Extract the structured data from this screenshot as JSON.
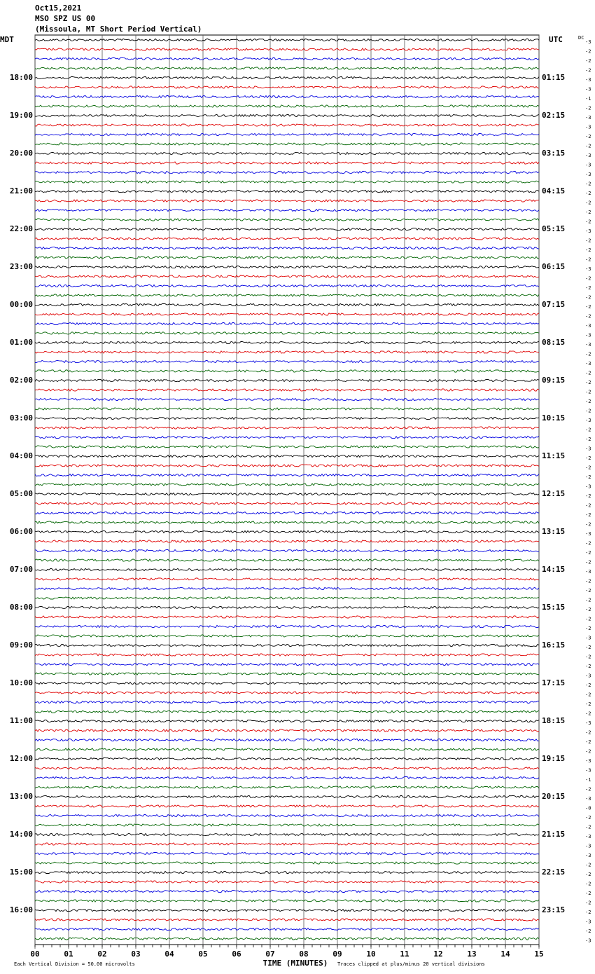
{
  "chart_data": {
    "type": "helicorder",
    "title_lines": [
      "Oct15,2021",
      "MSO SPZ US 00",
      "(Missoula, MT Short Period Vertical)"
    ],
    "left_axis_label": "MDT",
    "right_axis_label": "UTC",
    "dc_label": "DC",
    "x_label": "TIME (MINUTES)",
    "footer_left": "Each Vertical Division =   50.00 microvolts",
    "footer_right": "Traces clipped at plus/minus 20 vertical divisions",
    "xlim": [
      0,
      15
    ],
    "xticks": [
      {
        "value": 0,
        "label": "00"
      },
      {
        "value": 1,
        "label": "01"
      },
      {
        "value": 2,
        "label": "02"
      },
      {
        "value": 3,
        "label": "03"
      },
      {
        "value": 4,
        "label": "04"
      },
      {
        "value": 5,
        "label": "05"
      },
      {
        "value": 6,
        "label": "06"
      },
      {
        "value": 7,
        "label": "07"
      },
      {
        "value": 8,
        "label": "08"
      },
      {
        "value": 9,
        "label": "09"
      },
      10,
      11,
      12,
      13,
      14,
      15
    ],
    "trace_colors": [
      "#000000",
      "#e00000",
      "#0000e0",
      "#006400"
    ],
    "left_labels": [
      "18:00",
      "19:00",
      "20:00",
      "21:00",
      "22:00",
      "23:00",
      "00:00",
      "01:00",
      "02:00",
      "03:00",
      "04:00",
      "05:00",
      "06:00",
      "07:00",
      "08:00",
      "09:00",
      "10:00",
      "11:00",
      "12:00",
      "13:00",
      "14:00",
      "15:00",
      "16:00"
    ],
    "right_labels": [
      "01:15",
      "02:15",
      "03:15",
      "04:15",
      "05:15",
      "06:15",
      "07:15",
      "08:15",
      "09:15",
      "10:15",
      "11:15",
      "12:15",
      "13:15",
      "14:15",
      "15:15",
      "16:15",
      "17:15",
      "18:15",
      "19:15",
      "20:15",
      "21:15",
      "22:15",
      "23:15"
    ],
    "dc_offsets": [
      "-3",
      "-2",
      "-2",
      "-2",
      "-3",
      "-3",
      "-1",
      "-2",
      "-3",
      "-3",
      "-2",
      "-2",
      "-3",
      "-3",
      "-3",
      "-2",
      "-2",
      "-2",
      "-2",
      "-2",
      "-3",
      "-2",
      "-2",
      "-2",
      "-3",
      "-2",
      "-2",
      "-2",
      "-2",
      "-2",
      "-3",
      "-3",
      "-3",
      "-2",
      "-3",
      "-2",
      "-2",
      "-2",
      "-2",
      "-2",
      "-3",
      "-2",
      "-2",
      "-3",
      "-2",
      "-2",
      "-2",
      "-3",
      "-2",
      "-2",
      "-2",
      "-2",
      "-3",
      "-2",
      "-2",
      "-2",
      "-3",
      "-2",
      "-2",
      "-2",
      "-2",
      "-2",
      "-2",
      "-3",
      "-2",
      "-2",
      "-2",
      "-3",
      "-2",
      "-2",
      "-2",
      "-2",
      "-3",
      "-2",
      "-2",
      "-2",
      "-3",
      "-3",
      "-1",
      "-2",
      "-3",
      "-0",
      "-2",
      "-2",
      "-3",
      "-3",
      "-3",
      "-2",
      "-2",
      "-2",
      "-2",
      "-2",
      "-2",
      "-3",
      "-2",
      "-3"
    ]
  }
}
